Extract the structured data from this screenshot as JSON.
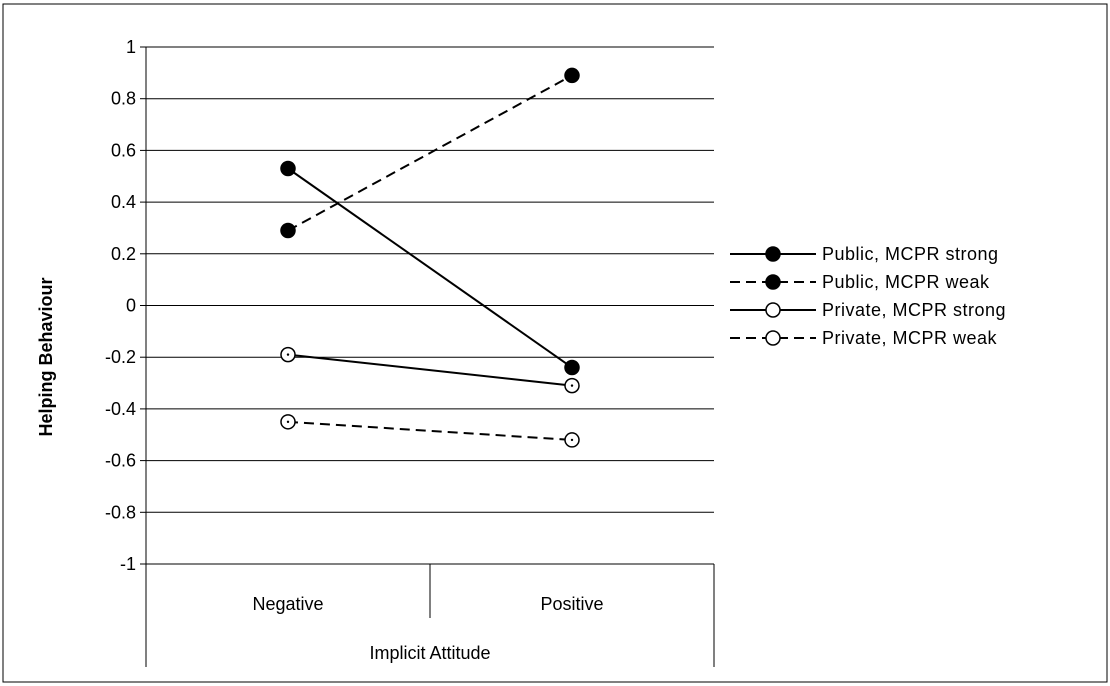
{
  "chart_data": {
    "type": "line",
    "categories": [
      "Negative",
      "Positive"
    ],
    "xlabel": "Implicit Attitude",
    "ylabel": "Helping Behaviour",
    "ylim": [
      -1,
      1
    ],
    "ytick_step": 0.2,
    "yticks": [
      "1",
      "0.8",
      "0.6",
      "0.4",
      "0.2",
      "0",
      "-0.2",
      "-0.4",
      "-0.6",
      "-0.8",
      "-1"
    ],
    "grid": true,
    "legend_position": "right",
    "series": [
      {
        "name": "Public, MCPR strong",
        "values": [
          0.53,
          -0.24
        ],
        "line_style": "solid",
        "marker": "filled-circle"
      },
      {
        "name": "Public, MCPR weak",
        "values": [
          0.29,
          0.89
        ],
        "line_style": "dashed",
        "marker": "filled-circle"
      },
      {
        "name": "Private, MCPR strong",
        "values": [
          -0.19,
          -0.31
        ],
        "line_style": "solid",
        "marker": "open-circle"
      },
      {
        "name": "Private, MCPR weak",
        "values": [
          -0.45,
          -0.52
        ],
        "line_style": "dashed",
        "marker": "open-circle"
      }
    ],
    "colors": {
      "line": "#000000",
      "grid": "#000000",
      "marker_fill": "#000000",
      "open_marker_fill": "#ffffff"
    }
  }
}
